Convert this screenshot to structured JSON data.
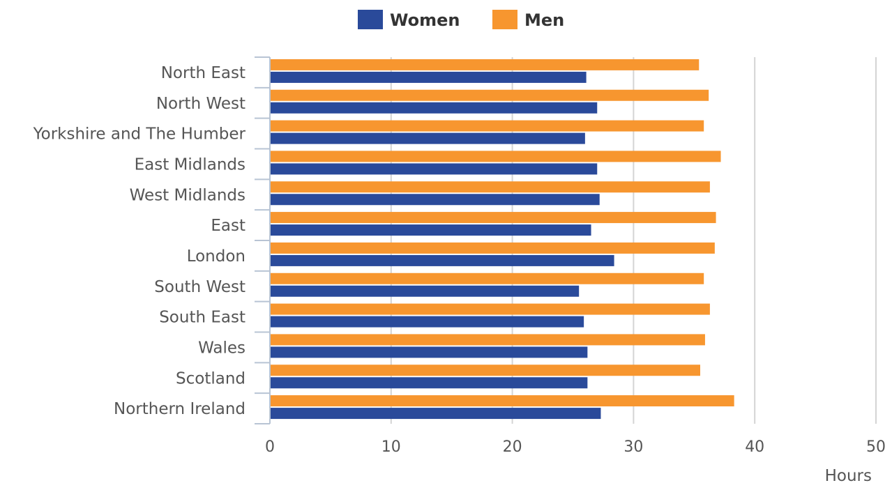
{
  "colors": {
    "women": "#2a4a9a",
    "men": "#f7962f",
    "grid": "#d4d4d4",
    "axis": "#b8c4d4",
    "text": "#555555"
  },
  "chart_data": {
    "type": "bar",
    "orientation": "horizontal",
    "categories": [
      "North East",
      "North West",
      "Yorkshire and The Humber",
      "East Midlands",
      "West Midlands",
      "East",
      "London",
      "South West",
      "South East",
      "Wales",
      "Scotland",
      "Northern Ireland"
    ],
    "series": [
      {
        "name": "Women",
        "color": "#2a4a9a",
        "values": [
          26.1,
          27.0,
          26.0,
          27.0,
          27.2,
          26.5,
          28.4,
          25.5,
          25.9,
          26.2,
          26.2,
          27.3
        ]
      },
      {
        "name": "Men",
        "color": "#f7962f",
        "values": [
          35.4,
          36.2,
          35.8,
          37.2,
          36.3,
          36.8,
          36.7,
          35.8,
          36.3,
          35.9,
          35.5,
          38.3
        ]
      }
    ],
    "xlabel": "Hours",
    "ylabel": "",
    "xlim": [
      0,
      50
    ],
    "xticks": [
      0,
      10,
      20,
      30,
      40,
      50
    ],
    "grid": true,
    "legend_position": "top-center"
  }
}
